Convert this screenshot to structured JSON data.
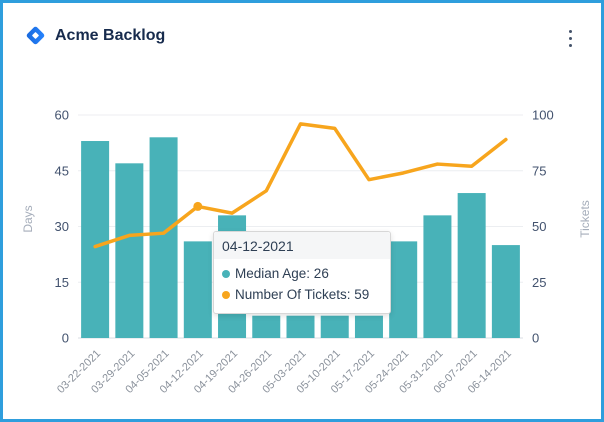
{
  "window": {
    "border_color": "#2f9edd",
    "background": "#ffffff"
  },
  "header": {
    "title": "Acme Backlog",
    "logo_icon": "diamond-logo",
    "logo_colors": [
      "#2684ff",
      "#1868db"
    ],
    "menu_icon": "kebab-menu"
  },
  "chart_data": {
    "type": "combo_bar_line",
    "categories": [
      "03-22-2021",
      "03-29-2021",
      "04-05-2021",
      "04-12-2021",
      "04-19-2021",
      "04-26-2021",
      "05-03-2021",
      "05-10-2021",
      "05-17-2021",
      "05-24-2021",
      "05-31-2021",
      "06-07-2021",
      "06-14-2021"
    ],
    "series": [
      {
        "name": "Median Age",
        "type": "bar",
        "axis": "left",
        "color": "#48b2b8",
        "values": [
          53,
          47,
          54,
          26,
          33,
          6,
          6,
          6,
          6,
          26,
          33,
          39,
          25
        ]
      },
      {
        "name": "Number Of Tickets",
        "type": "line",
        "axis": "right",
        "color": "#f7a51d",
        "values": [
          41,
          46,
          47,
          59,
          56,
          66,
          96,
          94,
          71,
          74,
          78,
          77,
          89
        ]
      }
    ],
    "left_axis": {
      "label": "Days",
      "ticks": [
        0,
        15,
        30,
        45,
        60
      ],
      "range": [
        0,
        60
      ]
    },
    "right_axis": {
      "label": "Tickets",
      "ticks": [
        0,
        25,
        50,
        75,
        100
      ],
      "range": [
        0,
        100
      ]
    },
    "grid": "horizontal",
    "legend_position": "none",
    "highlight_index": 3,
    "tick_color": "#42526e",
    "axis_title_color": "#a5adba",
    "x_label_color": "#8b929c",
    "gridline_color": "#eceef1",
    "baseline_color": "#d9dde3"
  },
  "tooltip": {
    "title": "04-12-2021",
    "items": [
      {
        "label": "Median Age",
        "value": "26",
        "color": "#48b2b8"
      },
      {
        "label": "Number Of Tickets",
        "value": "59",
        "color": "#f7a51d"
      }
    ]
  }
}
